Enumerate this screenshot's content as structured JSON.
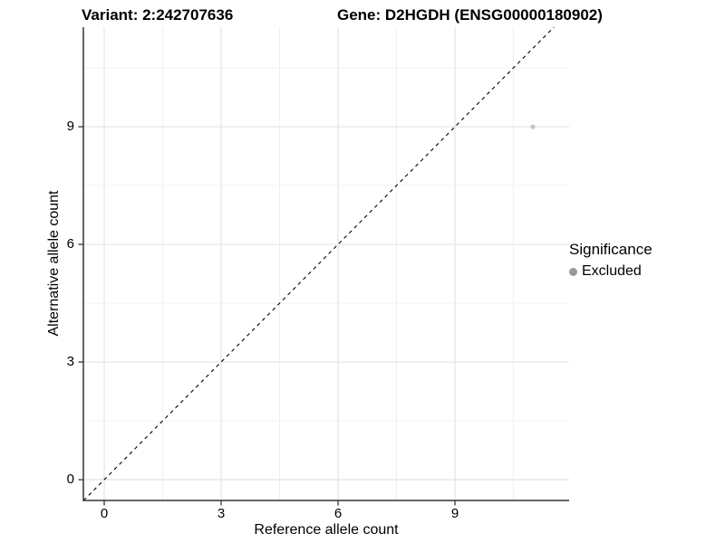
{
  "titles": {
    "left": "Variant: 2:242707636",
    "right": "Gene: D2HGDH (ENSG00000180902)"
  },
  "chart_data": {
    "type": "scatter",
    "title": "Variant: 2:242707636 — Gene: D2HGDH (ENSG00000180902)",
    "xlabel": "Reference allele count",
    "ylabel": "Alternative allele count",
    "x_ticks": [
      0,
      3,
      6,
      9
    ],
    "y_ticks": [
      0,
      3,
      6,
      9
    ],
    "x_minor_ticks": [
      1.5,
      4.5,
      7.5,
      10.5
    ],
    "y_minor_ticks": [
      1.5,
      4.5,
      7.5,
      10.5
    ],
    "xlim": [
      -0.535,
      11.93
    ],
    "ylim": [
      -0.53,
      11.54
    ],
    "grid": "major+minor on, white panel",
    "reference_line": {
      "type": "identity y=x",
      "style": "dashed",
      "color": "#000000"
    },
    "points": [
      {
        "x": 11,
        "y": 9,
        "significance": "Excluded",
        "color": "#c4c4c4"
      }
    ],
    "legend": {
      "title": "Significance",
      "position": "right",
      "items": [
        {
          "label": "Excluded",
          "marker": "circle",
          "color": "#999999"
        }
      ]
    }
  },
  "style_colors": {
    "major_grid": "#e4e4e4",
    "minor_grid": "#f0f0f0",
    "axis_line": "#333333",
    "point": "#c4c4c4",
    "legend_marker": "#999999"
  }
}
